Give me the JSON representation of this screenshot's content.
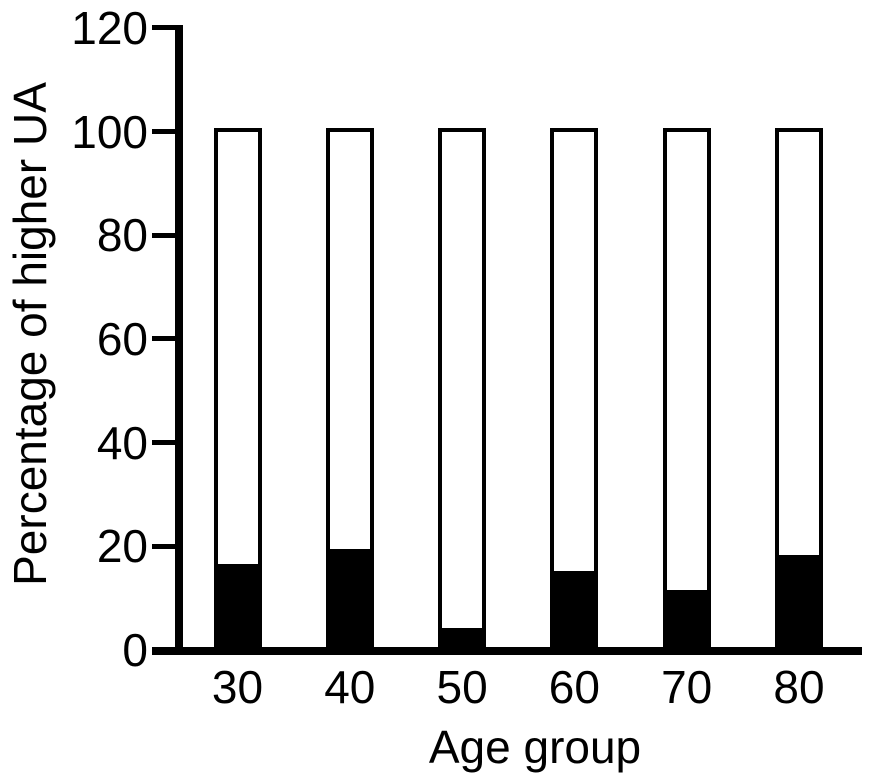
{
  "figure": {
    "background_color": "#ffffff",
    "ink_color": "#000000"
  },
  "chart_data": {
    "type": "bar",
    "subtype": "stacked",
    "title": "",
    "xlabel": "Age group",
    "ylabel": "Percentage of higher UA",
    "categories": [
      "30",
      "40",
      "50",
      "60",
      "70",
      "80"
    ],
    "series": [
      {
        "name": "higher-ua-black-segment",
        "fill": "#000000",
        "values": [
          16.5,
          19.4,
          4.2,
          15.3,
          11.5,
          18.3
        ]
      },
      {
        "name": "remainder-white-segment",
        "fill": "#ffffff",
        "values": [
          83.5,
          80.6,
          95.8,
          84.7,
          88.5,
          81.7
        ]
      }
    ],
    "stack_total": 100,
    "ylim": [
      0,
      120
    ],
    "yticks": [
      0,
      20,
      40,
      60,
      80,
      100,
      120
    ],
    "grid": false,
    "legend": "none"
  }
}
